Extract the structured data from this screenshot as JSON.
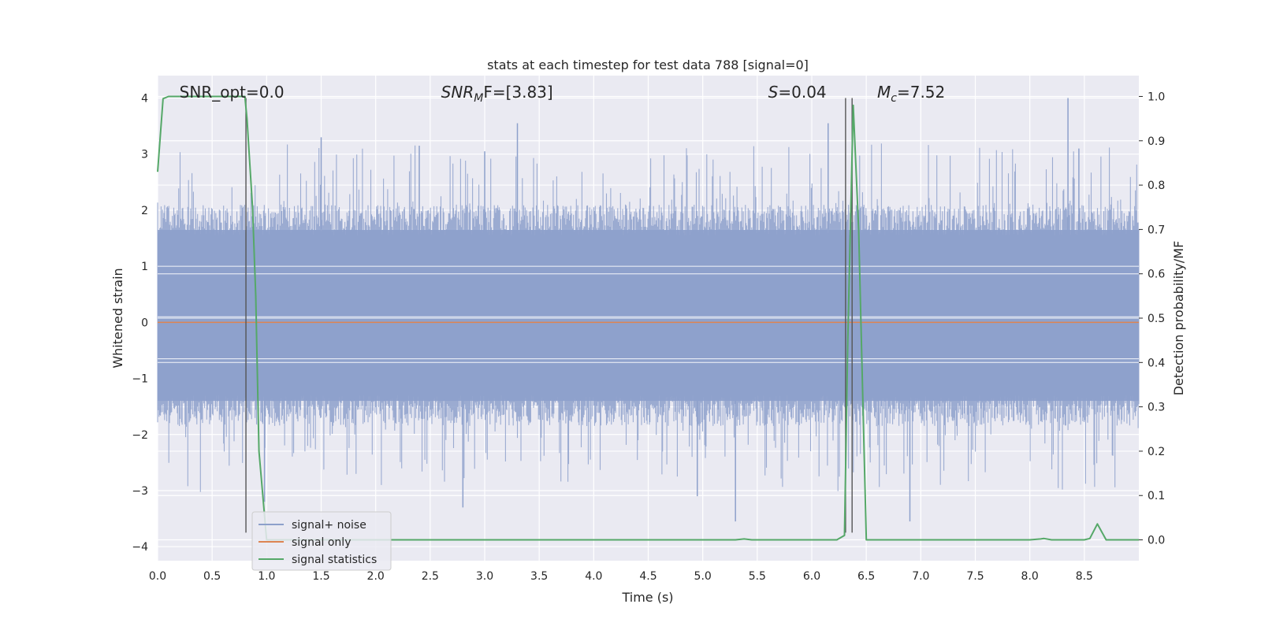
{
  "chart_data": {
    "type": "line",
    "title": "stats at each timestep for test data 788 [signal=0]",
    "xlabel": "Time (s)",
    "ylabel": "Whitened strain",
    "y2label": "Detection probability/MF",
    "xlim": [
      0.0,
      9.0
    ],
    "ylim": [
      -4.25,
      4.4
    ],
    "y2lim": [
      -0.047,
      1.047
    ],
    "x_ticks": [
      0.0,
      0.5,
      1.0,
      1.5,
      2.0,
      2.5,
      3.0,
      3.5,
      4.0,
      4.5,
      5.0,
      5.5,
      6.0,
      6.5,
      7.0,
      7.5,
      8.0,
      8.5
    ],
    "x_tick_labels": [
      "0.0",
      "0.5",
      "1.0",
      "1.5",
      "2.0",
      "2.5",
      "3.0",
      "3.5",
      "4.0",
      "4.5",
      "5.0",
      "5.5",
      "6.0",
      "6.5",
      "7.0",
      "7.5",
      "8.0",
      "8.5"
    ],
    "y_ticks": [
      -4,
      -3,
      -2,
      -1,
      0,
      1,
      2,
      3,
      4
    ],
    "y_tick_labels": [
      "−4",
      "−3",
      "−2",
      "−1",
      "0",
      "1",
      "2",
      "3",
      "4"
    ],
    "y2_ticks": [
      0.0,
      0.1,
      0.2,
      0.3,
      0.4,
      0.5,
      0.6,
      0.7,
      0.8,
      0.9,
      1.0
    ],
    "y2_tick_labels": [
      "0.0",
      "0.1",
      "0.2",
      "0.3",
      "0.4",
      "0.5",
      "0.6",
      "0.7",
      "0.8",
      "0.9",
      "1.0"
    ],
    "grid": true,
    "legend_position": "lower-left",
    "annotations": [
      {
        "text": "SNR_opt=0.0",
        "x": 0.2
      },
      {
        "text": "SNRₘF=[3.83]",
        "x": 2.6,
        "main": "SNR",
        "sub": "M",
        "rest": "F=[3.83]"
      },
      {
        "text": "S=0.04",
        "x": 5.6,
        "main": "S",
        "sub": "",
        "rest": "=0.04"
      },
      {
        "text": "Mc=7.52",
        "x": 6.6,
        "main": "M",
        "sub": "c",
        "rest": "=7.52"
      }
    ],
    "vertical_lines": [
      0.81,
      6.31,
      6.37
    ],
    "series": [
      {
        "name": "signal+ noise",
        "color": "#8da0cb",
        "axis": "left",
        "style": "noise",
        "x_range": [
          0.0,
          9.0
        ],
        "band": [
          -1.4,
          1.65
        ],
        "peak_range": [
          -3.6,
          4.0
        ],
        "peaks": [
          {
            "x": 1.5,
            "y": 3.3
          },
          {
            "x": 2.4,
            "y": 3.15
          },
          {
            "x": 3.3,
            "y": 3.55
          },
          {
            "x": 6.15,
            "y": 3.55
          },
          {
            "x": 8.35,
            "y": 4.0
          },
          {
            "x": 8.45,
            "y": 3.1
          },
          {
            "x": 3.0,
            "y": 3.05
          },
          {
            "x": 2.8,
            "y": -3.3
          },
          {
            "x": 5.3,
            "y": -3.55
          },
          {
            "x": 6.9,
            "y": -3.55
          },
          {
            "x": 0.98,
            "y": -3.2
          },
          {
            "x": 4.95,
            "y": -3.1
          }
        ]
      },
      {
        "name": "signal only",
        "color": "#dd8452",
        "axis": "left",
        "x": [
          0.0,
          9.0
        ],
        "y": [
          0.0,
          0.0
        ]
      },
      {
        "name": "signal statistics",
        "color": "#55a868",
        "axis": "right",
        "x": [
          0.0,
          0.05,
          0.1,
          0.2,
          0.4,
          0.6,
          0.78,
          0.8,
          0.82,
          0.87,
          0.9,
          0.93,
          1.0,
          2.0,
          3.0,
          4.0,
          5.0,
          5.3,
          5.38,
          5.45,
          6.0,
          6.23,
          6.3,
          6.33,
          6.38,
          6.43,
          6.47,
          6.5,
          7.0,
          8.0,
          8.1,
          8.13,
          8.2,
          8.3,
          8.5,
          8.55,
          8.62,
          8.7,
          9.0
        ],
        "y": [
          0.83,
          0.995,
          1.0,
          1.0,
          1.0,
          1.0,
          1.0,
          1.0,
          0.95,
          0.75,
          0.55,
          0.2,
          0.0,
          0.0,
          0.0,
          0.0,
          0.0,
          0.0,
          0.002,
          0.0,
          0.0,
          0.0,
          0.01,
          0.45,
          0.98,
          0.7,
          0.3,
          0.0,
          0.0,
          0.0,
          0.002,
          0.003,
          0.0,
          0.0,
          0.0,
          0.003,
          0.036,
          0.0,
          0.0
        ]
      }
    ]
  }
}
